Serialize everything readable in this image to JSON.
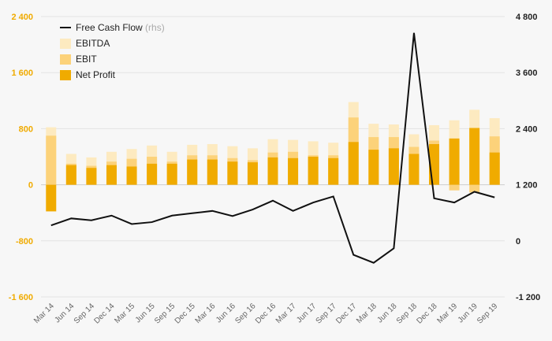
{
  "chart_data": {
    "type": "bar",
    "categories": [
      "Mar 14",
      "Jun 14",
      "Sep 14",
      "Dec 14",
      "Mar 15",
      "Jun 15",
      "Sep 15",
      "Dec 15",
      "Mar 16",
      "Jun 16",
      "Sep 16",
      "Dec 16",
      "Mar 17",
      "Jun 17",
      "Sep 17",
      "Dec 17",
      "Mar 18",
      "Jun 18",
      "Sep 18",
      "Dec 18",
      "Mar 19",
      "Jun 19",
      "Sep 19"
    ],
    "series": [
      {
        "name": "EBITDA",
        "type": "bar",
        "axis": "left",
        "color": "#fdeac0",
        "values": [
          820,
          440,
          390,
          470,
          510,
          560,
          470,
          570,
          580,
          550,
          520,
          650,
          640,
          620,
          600,
          1180,
          870,
          860,
          720,
          850,
          920,
          1070,
          950
        ]
      },
      {
        "name": "EBIT",
        "type": "bar",
        "axis": "left",
        "color": "#fcd27a",
        "values": [
          700,
          300,
          270,
          330,
          370,
          400,
          330,
          420,
          420,
          380,
          350,
          460,
          470,
          420,
          420,
          960,
          680,
          680,
          540,
          630,
          -80,
          -110,
          690
        ]
      },
      {
        "name": "Net Profit",
        "type": "bar",
        "axis": "left",
        "color": "#f0ab00",
        "values": [
          -380,
          280,
          240,
          280,
          260,
          300,
          300,
          360,
          360,
          330,
          320,
          390,
          380,
          400,
          380,
          610,
          500,
          520,
          440,
          580,
          660,
          810,
          460
        ]
      },
      {
        "name": "Free Cash Flow",
        "suffix": "(rhs)",
        "type": "line",
        "axis": "right",
        "color": "#111111",
        "values": [
          330,
          480,
          440,
          540,
          360,
          400,
          540,
          590,
          640,
          530,
          670,
          860,
          640,
          820,
          950,
          -300,
          -470,
          -160,
          4450,
          910,
          820,
          1050,
          930
        ]
      }
    ],
    "ylim_left": [
      -1600,
      2400
    ],
    "ylim_right": [
      -1200,
      4800
    ],
    "yticks_left": [
      "2 400",
      "1 600",
      "800",
      "0",
      "-800",
      "-1 600"
    ],
    "yticks_right": [
      "4 800",
      "3 600",
      "2 400",
      "1 200",
      "0",
      "-1 200"
    ],
    "ytick_values_left": [
      2400,
      1600,
      800,
      0,
      -800,
      -1600
    ],
    "ytick_values_right": [
      4800,
      3600,
      2400,
      1200,
      0,
      -1200
    ],
    "grid": true,
    "legend_position": "top-left",
    "title": "",
    "xlabel": "",
    "ylabel": ""
  }
}
